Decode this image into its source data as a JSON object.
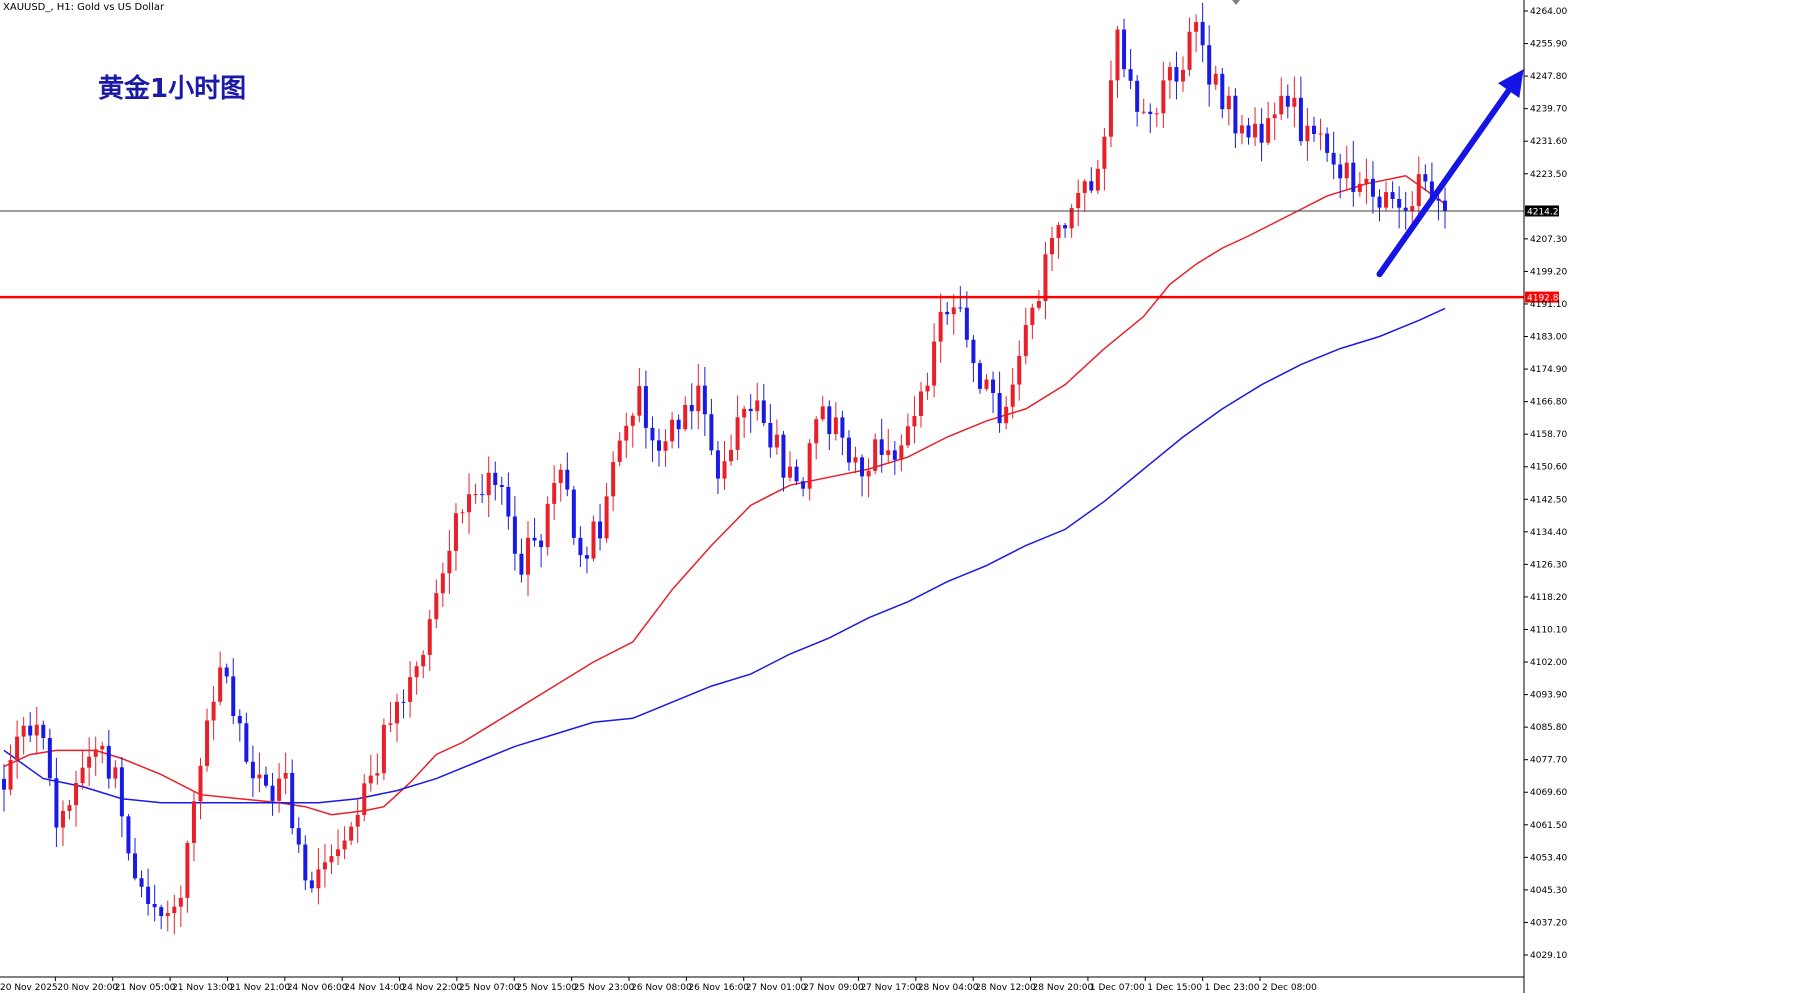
{
  "chart_header": {
    "symbol_label": "XAUUSD_, H1:  Gold vs US Dollar"
  },
  "overlay_title": "黄金1小时图",
  "colors": {
    "bull": "#e8202a",
    "bear": "#1a1ae6",
    "ma_fast": "#e8202a",
    "ma_slow": "#1a1ae6",
    "support_line": "#ff0000",
    "current_price_line": "#404040",
    "arrow": "#1414e6",
    "title": "#1a1aa6",
    "axis": "#000000"
  },
  "chart_data": {
    "type": "candlestick",
    "timeframe": "H1",
    "title": "黄金1小时图",
    "ylim": [
      4023.7,
      4266.5
    ],
    "y_ticks": [
      4264.0,
      4255.9,
      4247.8,
      4239.7,
      4231.6,
      4223.5,
      4207.3,
      4199.2,
      4191.1,
      4183.0,
      4174.9,
      4166.8,
      4158.7,
      4150.6,
      4142.5,
      4134.4,
      4126.3,
      4118.2,
      4110.1,
      4102.0,
      4093.9,
      4085.8,
      4077.7,
      4069.6,
      4061.5,
      4053.4,
      4045.3,
      4037.2,
      4029.1
    ],
    "x_tick_labels": [
      "20 Nov 2025",
      "20 Nov 20:00",
      "21 Nov 05:00",
      "21 Nov 13:00",
      "21 Nov 21:00",
      "24 Nov 06:00",
      "24 Nov 14:00",
      "24 Nov 22:00",
      "25 Nov 07:00",
      "25 Nov 15:00",
      "25 Nov 23:00",
      "26 Nov 08:00",
      "26 Nov 16:00",
      "27 Nov 01:00",
      "27 Nov 09:00",
      "27 Nov 17:00",
      "28 Nov 04:00",
      "28 Nov 12:00",
      "28 Nov 20:00",
      "1 Dec 07:00",
      "1 Dec 15:00",
      "1 Dec 23:00",
      "2 Dec 08:00"
    ],
    "candle_count": 226,
    "anchors": [
      [
        0,
        4072
      ],
      [
        3,
        4084
      ],
      [
        5,
        4089
      ],
      [
        8,
        4062
      ],
      [
        11,
        4073
      ],
      [
        14,
        4082
      ],
      [
        17,
        4074
      ],
      [
        19,
        4055
      ],
      [
        21,
        4048
      ],
      [
        24,
        4037
      ],
      [
        27,
        4046
      ],
      [
        29,
        4066
      ],
      [
        33,
        4100
      ],
      [
        37,
        4078
      ],
      [
        40,
        4068
      ],
      [
        43,
        4073
      ],
      [
        46,
        4046
      ],
      [
        49,
        4052
      ],
      [
        52,
        4062
      ],
      [
        55,
        4070
      ],
      [
        58,
        4082
      ],
      [
        62,
        4098
      ],
      [
        66,
        4118
      ],
      [
        69,
        4138
      ],
      [
        72,
        4148
      ],
      [
        76,
        4142
      ],
      [
        79,
        4128
      ],
      [
        82,
        4134
      ],
      [
        85,
        4148
      ],
      [
        88,
        4130
      ],
      [
        91,
        4135
      ],
      [
        94,
        4156
      ],
      [
        97,
        4168
      ],
      [
        100,
        4153
      ],
      [
        103,
        4164
      ],
      [
        106,
        4170
      ],
      [
        109,
        4145
      ],
      [
        112,
        4166
      ],
      [
        116,
        4164
      ],
      [
        119,
        4151
      ],
      [
        122,
        4148
      ],
      [
        125,
        4164
      ],
      [
        128,
        4158
      ],
      [
        131,
        4152
      ],
      [
        134,
        4156
      ],
      [
        137,
        4156
      ],
      [
        140,
        4166
      ],
      [
        143,
        4190
      ],
      [
        146,
        4186
      ],
      [
        149,
        4172
      ],
      [
        152,
        4164
      ],
      [
        155,
        4176
      ],
      [
        158,
        4194
      ],
      [
        161,
        4210
      ],
      [
        164,
        4219
      ],
      [
        167,
        4226
      ],
      [
        170,
        4256
      ],
      [
        173,
        4238
      ],
      [
        176,
        4241
      ],
      [
        179,
        4250
      ],
      [
        182,
        4258
      ],
      [
        185,
        4246
      ],
      [
        188,
        4236
      ],
      [
        191,
        4232
      ],
      [
        194,
        4240
      ],
      [
        197,
        4238
      ],
      [
        200,
        4232
      ],
      [
        203,
        4224
      ],
      [
        206,
        4222
      ],
      [
        209,
        4220
      ],
      [
        212,
        4217
      ],
      [
        215,
        4219
      ],
      [
        217,
        4223
      ],
      [
        219,
        4213
      ],
      [
        220,
        4214.24
      ]
    ],
    "series": [
      {
        "name": "",
        "role": "moving-average-fast",
        "color": "#e8202a",
        "points": [
          [
            0,
            4076
          ],
          [
            4,
            4079
          ],
          [
            8,
            4080
          ],
          [
            14,
            4080
          ],
          [
            18,
            4078
          ],
          [
            24,
            4074
          ],
          [
            30,
            4069
          ],
          [
            36,
            4068
          ],
          [
            42,
            4067
          ],
          [
            46,
            4066
          ],
          [
            50,
            4064
          ],
          [
            55,
            4065
          ],
          [
            58,
            4066
          ],
          [
            62,
            4072
          ],
          [
            66,
            4079
          ],
          [
            70,
            4082
          ],
          [
            74,
            4086
          ],
          [
            78,
            4090
          ],
          [
            84,
            4096
          ],
          [
            90,
            4102
          ],
          [
            96,
            4107
          ],
          [
            102,
            4120
          ],
          [
            108,
            4131
          ],
          [
            114,
            4141
          ],
          [
            120,
            4146
          ],
          [
            126,
            4148
          ],
          [
            132,
            4150
          ],
          [
            138,
            4153
          ],
          [
            144,
            4158
          ],
          [
            150,
            4162
          ],
          [
            156,
            4165
          ],
          [
            162,
            4171
          ],
          [
            168,
            4180
          ],
          [
            174,
            4188
          ],
          [
            178,
            4196
          ],
          [
            182,
            4201
          ],
          [
            186,
            4205
          ],
          [
            190,
            4208
          ],
          [
            196,
            4213
          ],
          [
            202,
            4218
          ],
          [
            208,
            4221
          ],
          [
            214,
            4223
          ],
          [
            220,
            4216
          ]
        ]
      },
      {
        "name": "",
        "role": "moving-average-slow",
        "color": "#1a1ae6",
        "points": [
          [
            0,
            4080
          ],
          [
            6,
            4073
          ],
          [
            12,
            4071
          ],
          [
            18,
            4068
          ],
          [
            24,
            4067
          ],
          [
            30,
            4067
          ],
          [
            36,
            4067
          ],
          [
            42,
            4067
          ],
          [
            48,
            4067
          ],
          [
            54,
            4068
          ],
          [
            60,
            4070
          ],
          [
            66,
            4073
          ],
          [
            72,
            4077
          ],
          [
            78,
            4081
          ],
          [
            84,
            4084
          ],
          [
            90,
            4087
          ],
          [
            96,
            4088
          ],
          [
            102,
            4092
          ],
          [
            108,
            4096
          ],
          [
            114,
            4099
          ],
          [
            120,
            4104
          ],
          [
            126,
            4108
          ],
          [
            132,
            4113
          ],
          [
            138,
            4117
          ],
          [
            144,
            4122
          ],
          [
            150,
            4126
          ],
          [
            156,
            4131
          ],
          [
            162,
            4135
          ],
          [
            168,
            4142
          ],
          [
            174,
            4150
          ],
          [
            180,
            4158
          ],
          [
            186,
            4165
          ],
          [
            192,
            4171
          ],
          [
            198,
            4176
          ],
          [
            204,
            4180
          ],
          [
            210,
            4183
          ],
          [
            216,
            4187
          ],
          [
            220,
            4190
          ]
        ]
      }
    ],
    "horizontal_lines": [
      {
        "label": "4192.81",
        "value": 4192.81,
        "role": "support"
      },
      {
        "label": "4214.24",
        "value": 4214.24,
        "role": "current-price"
      }
    ],
    "annotations": [
      {
        "type": "arrow",
        "direction": "up-right",
        "from_index": 210,
        "from_value": 4198.5,
        "to_index": 232,
        "to_value": 4249.5
      }
    ]
  }
}
